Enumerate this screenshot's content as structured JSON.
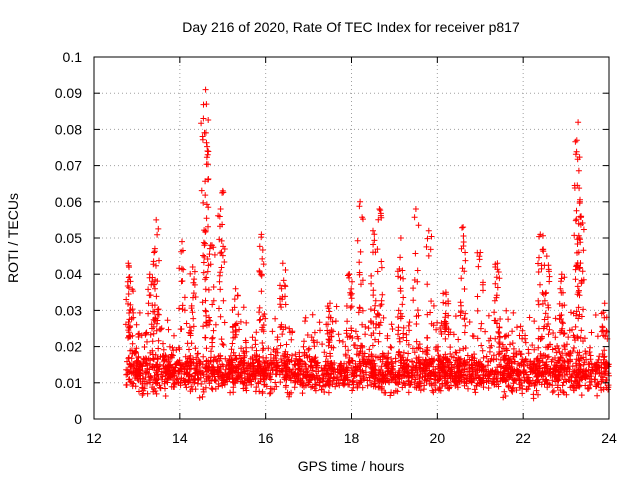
{
  "chart_data": {
    "type": "scatter",
    "title": "Day 216 of 2020, Rate Of TEC Index for receiver p817",
    "xlabel": "GPS time / hours",
    "ylabel": "ROTI / TECUs",
    "xlim": [
      12,
      24
    ],
    "ylim": [
      0,
      0.1
    ],
    "xticks": [
      12,
      14,
      16,
      18,
      20,
      22,
      24
    ],
    "xtick_labels": [
      "12",
      "14",
      "16",
      "18",
      "20",
      "22",
      "24"
    ],
    "yticks": [
      0,
      0.01,
      0.02,
      0.03,
      0.04,
      0.05,
      0.06,
      0.07,
      0.08,
      0.09,
      0.1
    ],
    "ytick_labels": [
      "0",
      "0.01",
      "0.02",
      "0.03",
      "0.04",
      "0.05",
      "0.06",
      "0.07",
      "0.08",
      "0.09",
      "0.1"
    ],
    "grid": true,
    "marker": "+",
    "series_color": "#ff0000",
    "data_start_hour": 12.75,
    "base_level": 0.013,
    "spikes": [
      {
        "x": 12.8,
        "y": 0.043
      },
      {
        "x": 12.85,
        "y": 0.038
      },
      {
        "x": 13.3,
        "y": 0.04
      },
      {
        "x": 13.4,
        "y": 0.046
      },
      {
        "x": 13.45,
        "y": 0.055
      },
      {
        "x": 14.05,
        "y": 0.049
      },
      {
        "x": 14.3,
        "y": 0.042
      },
      {
        "x": 14.55,
        "y": 0.083
      },
      {
        "x": 14.6,
        "y": 0.091
      },
      {
        "x": 14.62,
        "y": 0.087
      },
      {
        "x": 14.65,
        "y": 0.073
      },
      {
        "x": 14.75,
        "y": 0.048
      },
      {
        "x": 14.95,
        "y": 0.058
      },
      {
        "x": 15.0,
        "y": 0.063
      },
      {
        "x": 15.3,
        "y": 0.036
      },
      {
        "x": 15.9,
        "y": 0.051
      },
      {
        "x": 16.4,
        "y": 0.043
      },
      {
        "x": 17.5,
        "y": 0.032
      },
      {
        "x": 17.95,
        "y": 0.04
      },
      {
        "x": 18.2,
        "y": 0.06
      },
      {
        "x": 18.5,
        "y": 0.052
      },
      {
        "x": 18.65,
        "y": 0.058
      },
      {
        "x": 19.15,
        "y": 0.05
      },
      {
        "x": 19.5,
        "y": 0.058
      },
      {
        "x": 19.8,
        "y": 0.052
      },
      {
        "x": 20.2,
        "y": 0.035
      },
      {
        "x": 20.6,
        "y": 0.053
      },
      {
        "x": 21.0,
        "y": 0.046
      },
      {
        "x": 21.4,
        "y": 0.043
      },
      {
        "x": 22.4,
        "y": 0.051
      },
      {
        "x": 22.55,
        "y": 0.045
      },
      {
        "x": 22.9,
        "y": 0.04
      },
      {
        "x": 23.25,
        "y": 0.077
      },
      {
        "x": 23.28,
        "y": 0.082
      },
      {
        "x": 23.32,
        "y": 0.06
      },
      {
        "x": 23.35,
        "y": 0.056
      },
      {
        "x": 23.3,
        "y": 0.05
      },
      {
        "x": 23.9,
        "y": 0.032
      }
    ]
  }
}
